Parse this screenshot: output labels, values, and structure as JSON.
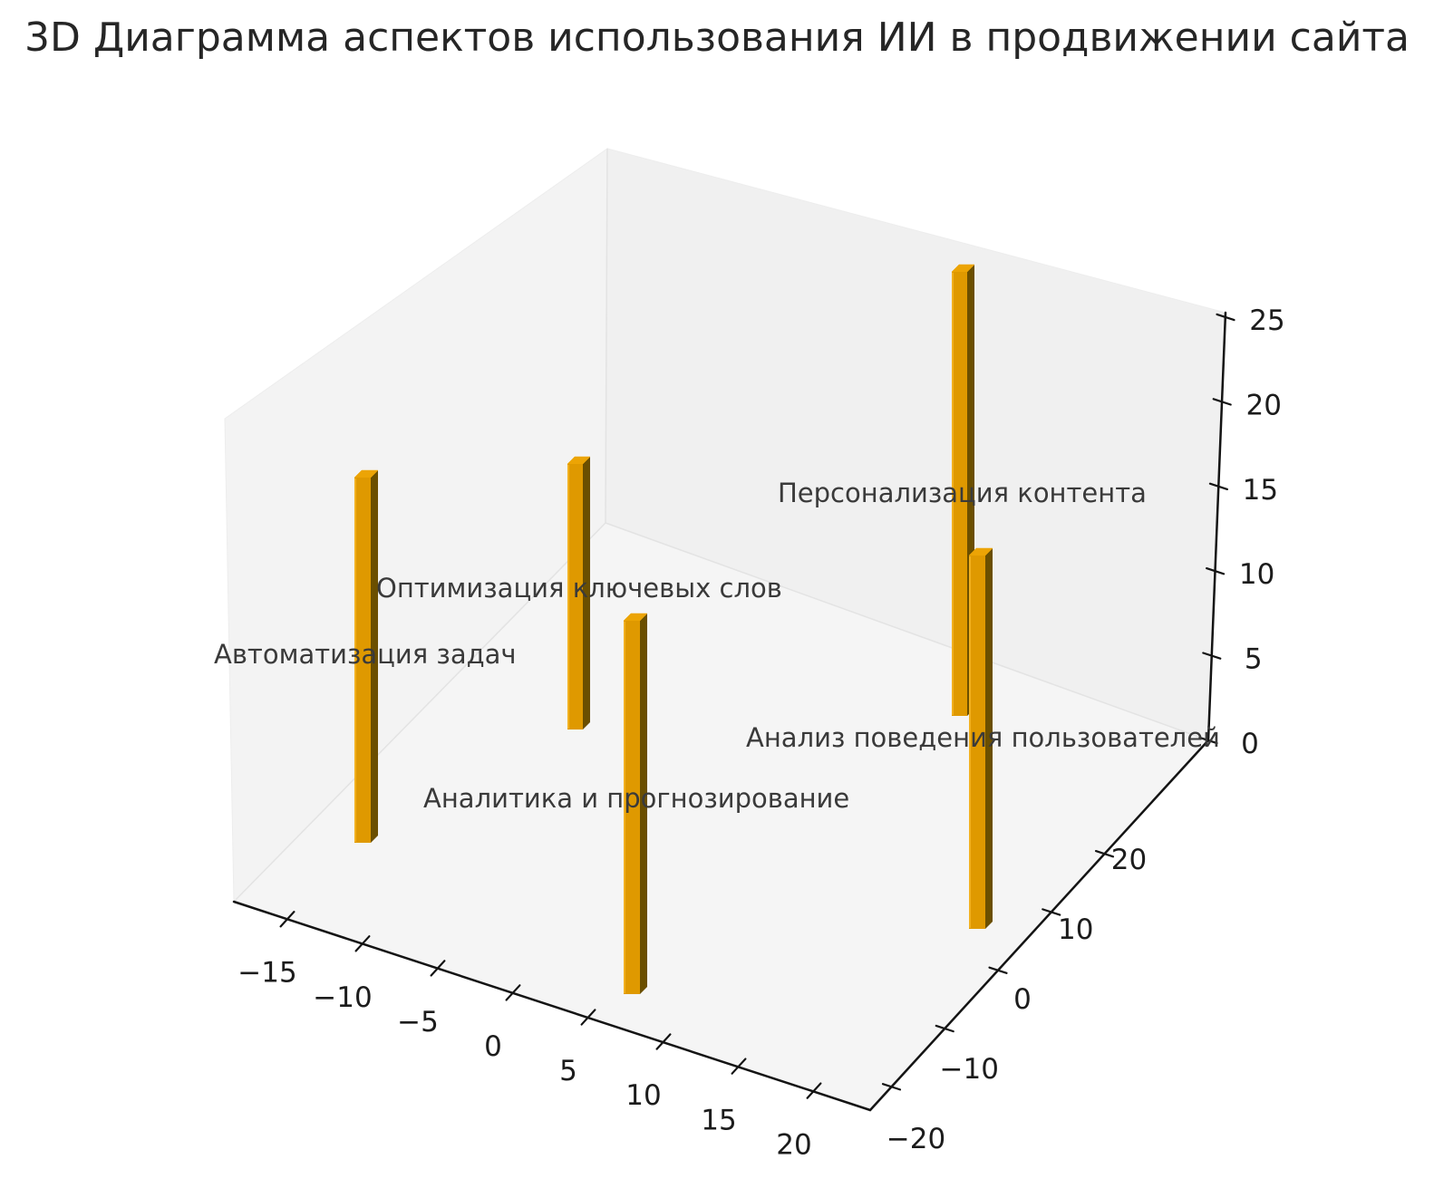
{
  "page": {
    "background": "#ffffff"
  },
  "chart_data": {
    "type": "bar",
    "projection": "3d",
    "title": "3D Диаграмма аспектов использования ИИ в продвижении сайта",
    "bars": [
      {
        "label": "Автоматизация задач",
        "value": 20,
        "xy_estimate": [
          -10,
          -10
        ]
      },
      {
        "label": "Оптимизация ключевых слов",
        "value": 17,
        "xy_estimate": [
          -5,
          5
        ]
      },
      {
        "label": "Аналитика и прогнозирование",
        "value": 19,
        "xy_estimate": [
          5,
          -15
        ]
      },
      {
        "label": "Персонализация контента",
        "value": 25,
        "xy_estimate": [
          10,
          15
        ]
      },
      {
        "label": "Анализ поведения пользователей",
        "value": 20,
        "xy_estimate": [
          15,
          -10
        ]
      }
    ],
    "values_are_estimates": true,
    "x_ticks": [
      -15,
      -10,
      -5,
      0,
      5,
      10,
      15,
      20
    ],
    "y_ticks": [
      -20,
      -10,
      0,
      10,
      20
    ],
    "z_ticks": [
      0,
      5,
      10,
      15,
      20,
      25
    ],
    "x_range": [
      -17.5,
      22.5
    ],
    "y_range": [
      -22.5,
      25
    ],
    "z_range": [
      0,
      25
    ],
    "grid": false,
    "legend": null,
    "colors": {
      "bar_top": "#eca405",
      "bar_front": "#df9900",
      "bar_side": "#6b4f00",
      "bar_edge_highlight": "#f2b01e",
      "pane_left": "#f3f3f3",
      "pane_right": "#f0f0f0",
      "pane_floor": "#f5f5f5",
      "pane_seam": "#e3e3e3",
      "axis": "#141414",
      "tick_label": "#1c1c1c",
      "bar_label": "#3a3a3a",
      "title": "#262626",
      "background": "#ffffff"
    }
  }
}
